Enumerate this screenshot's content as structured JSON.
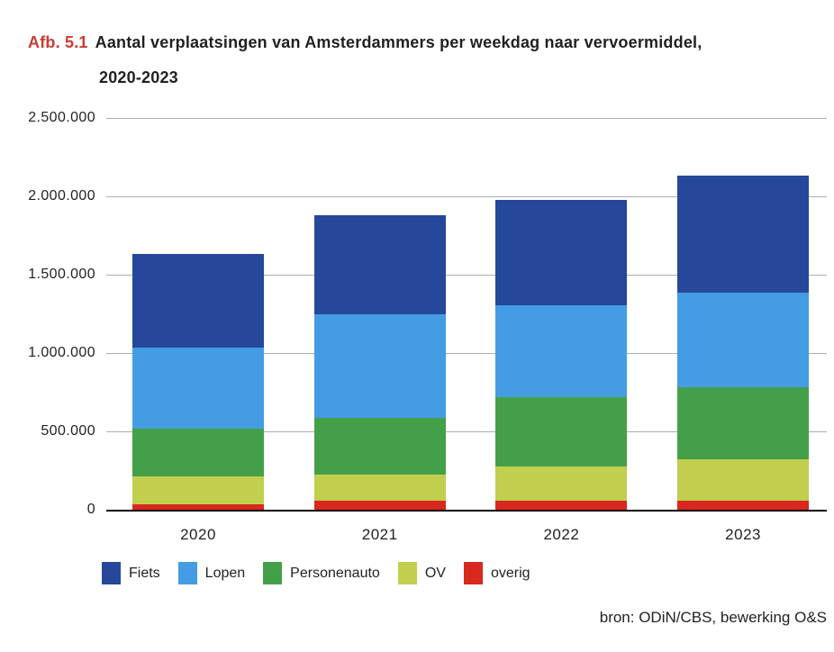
{
  "title": {
    "prefix": "Afb. 5.1",
    "line1": "Aantal verplaatsingen van Amsterdammers per weekdag naar vervoermiddel,",
    "line2": "2020-2023"
  },
  "source": {
    "text": "bron: ODiN/CBS, bewerking O&S"
  },
  "colors": {
    "title_accent": "#cf3a2f",
    "text": "#231f20",
    "gridline": "#adadad",
    "axis": "#000000"
  },
  "chart_data": {
    "type": "bar",
    "stacked": true,
    "title": "Aantal verplaatsingen van Amsterdammers per weekdag naar vervoermiddel, 2020-2023",
    "categories": [
      "2020",
      "2021",
      "2022",
      "2023"
    ],
    "series": [
      {
        "name": "Fiets",
        "color": "#26489a",
        "values": [
          595000,
          630000,
          670000,
          745000
        ]
      },
      {
        "name": "Lopen",
        "color": "#449ce4",
        "values": [
          515000,
          665000,
          585000,
          605000
        ]
      },
      {
        "name": "Personenauto",
        "color": "#44a048",
        "values": [
          310000,
          360000,
          445000,
          460000
        ]
      },
      {
        "name": "OV",
        "color": "#c2ce4e",
        "values": [
          175000,
          170000,
          220000,
          265000
        ]
      },
      {
        "name": "overig",
        "color": "#d9281e",
        "values": [
          35000,
          55000,
          55000,
          55000
        ]
      }
    ],
    "totals": [
      1630000,
      1880000,
      1975000,
      2130000
    ],
    "stack_order_bottom_to_top": [
      "overig",
      "OV",
      "Personenauto",
      "Lopen",
      "Fiets"
    ],
    "ylim": [
      0,
      2500000
    ],
    "ytick_interval": 500000,
    "ytick_labels": [
      "0",
      "500.000",
      "1.000.000",
      "1.500.000",
      "2.000.000",
      "2.500.000"
    ],
    "grid": true,
    "legend_position": "bottom",
    "xlabel": "",
    "ylabel": ""
  }
}
